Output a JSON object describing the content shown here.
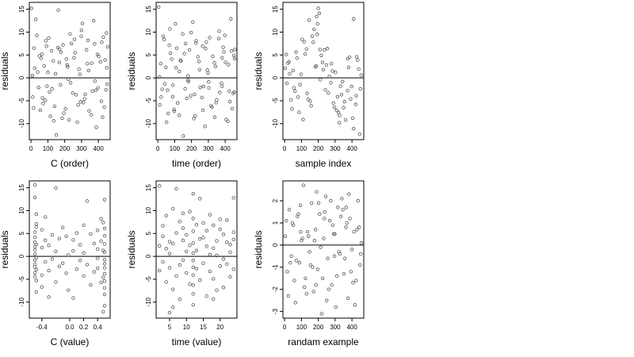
{
  "figure": {
    "ylabel": "residuals",
    "point_color": "#555555",
    "axis_color": "#000000"
  },
  "chart_data": [
    {
      "type": "scatter",
      "id": "c-order",
      "xlabel": "C (order)",
      "ylabel": "residuals",
      "xlim": [
        -10,
        470
      ],
      "ylim": [
        -13.5,
        16.5
      ],
      "xticks": [
        0,
        100,
        200,
        300,
        400
      ],
      "xtick_labels": [
        "0",
        "100",
        "200",
        "300",
        "400"
      ],
      "yticks": [
        -10,
        -5,
        0,
        5,
        10,
        15
      ],
      "ytick_labels": [
        "-10",
        "-5",
        "0",
        "5",
        "10",
        "15"
      ],
      "hline": 0,
      "x": [
        3,
        18,
        28,
        45,
        60,
        72,
        88,
        100,
        115,
        132,
        150,
        162,
        175,
        190,
        205,
        218,
        232,
        248,
        262,
        275,
        290,
        305,
        318,
        330,
        345,
        360,
        372,
        388,
        402,
        418,
        430,
        445,
        455,
        10,
        35,
        55,
        78,
        95,
        122,
        140,
        168,
        185,
        210,
        240,
        268,
        285,
        312,
        338,
        365,
        395,
        425,
        450,
        8,
        50,
        110,
        160,
        225,
        300,
        380,
        440,
        15,
        40,
        65,
        85,
        105,
        125,
        145,
        170,
        195,
        215,
        235,
        255,
        280,
        298,
        322,
        342,
        358,
        378,
        398,
        412,
        435,
        448,
        22,
        68,
        92,
        135,
        178,
        222,
        258,
        295,
        335,
        385,
        420,
        452
      ],
      "y": [
        15.2,
        6.5,
        12.8,
        -2.1,
        4.3,
        -5.6,
        8.1,
        1.2,
        -8.4,
        3.7,
        -12.5,
        14.8,
        -1.5,
        7.2,
        -6.8,
        2.4,
        9.6,
        -3.3,
        5.5,
        -9.7,
        0.8,
        11.9,
        -4.6,
        6.1,
        -7.2,
        3.2,
        12.5,
        -10.8,
        4.7,
        -5.1,
        8.9,
        -2.6,
        6.8,
        -4.2,
        9.3,
        -7.1,
        2.6,
        -1.8,
        5.9,
        -6.2,
        3.4,
        -8.8,
        4.1,
        7.5,
        -3.7,
        1.9,
        -5.4,
        8.2,
        -2.9,
        5.1,
        -8.6,
        2.2,
        0.5,
        4.8,
        -3.1,
        6.6,
        -9.2,
        10.4,
        -0.7,
        3.9,
        -6.6,
        1.3,
        5.2,
        -4.9,
        8.7,
        -2.4,
        0.9,
        6.3,
        -7.7,
        2.8,
        -1.1,
        4.4,
        -5.9,
        9.1,
        -3.6,
        1.6,
        -8.1,
        7.4,
        -2.2,
        3.5,
        -6.4,
        9.8,
        2.1,
        -4.4,
        6.9,
        -9.4,
        5.6,
        -0.3,
        8.4,
        -5.2,
        3.1,
        -2.7,
        7.8,
        -1.4
      ]
    },
    {
      "type": "scatter",
      "id": "time-order",
      "xlabel": "time (order)",
      "ylabel": "residuals",
      "xlim": [
        -10,
        470
      ],
      "ylim": [
        -13.5,
        16.5
      ],
      "xticks": [
        0,
        100,
        200,
        300,
        400
      ],
      "xtick_labels": [
        "0",
        "100",
        "200",
        "300",
        "400"
      ],
      "yticks": [
        -10,
        -5,
        0,
        5,
        10,
        15
      ],
      "ytick_labels": [
        "-10",
        "-5",
        "0",
        "5",
        "10",
        "15"
      ],
      "hline": 0,
      "x": [
        5,
        20,
        32,
        48,
        62,
        75,
        90,
        105,
        118,
        135,
        152,
        165,
        180,
        195,
        208,
        222,
        238,
        252,
        266,
        280,
        294,
        308,
        322,
        336,
        350,
        364,
        378,
        392,
        406,
        420,
        434,
        448,
        458,
        12,
        38,
        58,
        82,
        98,
        128,
        148,
        172,
        188,
        214,
        244,
        272,
        288,
        316,
        342,
        368,
        398,
        428,
        452,
        10,
        52,
        112,
        162,
        228,
        302,
        382,
        442,
        18,
        42,
        68,
        88,
        108,
        128,
        158,
        178,
        198,
        218,
        248,
        268,
        284,
        304,
        326,
        346,
        362,
        382,
        402,
        416,
        438,
        454,
        26,
        72,
        96,
        138,
        182,
        226,
        262,
        298,
        338,
        388,
        424,
        456
      ],
      "y": [
        15.5,
        -4.2,
        9.1,
        2.3,
        -7.8,
        5.4,
        -1.6,
        11.8,
        -5.5,
        3.8,
        -12.7,
        7.5,
        0.4,
        -3.9,
        12.2,
        -8.3,
        4.6,
        -2.1,
        6.9,
        -10.6,
        1.7,
        8.8,
        -6.4,
        3.3,
        -4.8,
        10.2,
        -1.2,
        5.7,
        -9.1,
        2.9,
        12.9,
        -3.4,
        6.2,
        -5.9,
        8.4,
        -2.7,
        4.1,
        -7.3,
        1.4,
        9.6,
        -4.5,
        6.1,
        -8.9,
        3.6,
        -1.9,
        7.8,
        -6.1,
        2.5,
        -3.2,
        9.3,
        -5.2,
        4.9,
        0.2,
        -9.7,
        6.5,
        -2.4,
        8.1,
        -0.9,
        4.4,
        -6.7,
        3.1,
        -1.3,
        7.1,
        -4.1,
        2.2,
        -8.2,
        5.3,
        -0.5,
        9.9,
        -3.6,
        1.8,
        -7.1,
        6.4,
        -2.2,
        4.7,
        -5.4,
        8.6,
        -1.8,
        3.4,
        -9.5,
        5.9,
        -3.1,
        -2.5,
        10.7,
        -6.9,
        3.7,
        -0.8,
        7.6,
        -4.3,
        1.1,
        -8.6,
        6.7,
        -2.9,
        4.2
      ]
    },
    {
      "type": "scatter",
      "id": "sample-index",
      "xlabel": "sample index",
      "ylabel": "residuals",
      "xlim": [
        -10,
        470
      ],
      "ylim": [
        -13.5,
        16.5
      ],
      "xticks": [
        0,
        100,
        200,
        300,
        400
      ],
      "xtick_labels": [
        "0",
        "100",
        "200",
        "300",
        "400"
      ],
      "yticks": [
        -10,
        -5,
        0,
        5,
        10,
        15
      ],
      "ytick_labels": [
        "-10",
        "-5",
        "0",
        "5",
        "10",
        "15"
      ],
      "hline": 0,
      "x": [
        4,
        14,
        26,
        38,
        50,
        62,
        74,
        86,
        98,
        110,
        122,
        134,
        146,
        158,
        170,
        182,
        194,
        200,
        206,
        218,
        230,
        242,
        254,
        266,
        278,
        290,
        302,
        314,
        326,
        338,
        350,
        362,
        374,
        386,
        398,
        410,
        422,
        434,
        446,
        455,
        20,
        44,
        68,
        92,
        116,
        140,
        164,
        188,
        212,
        236,
        260,
        284,
        308,
        332,
        356,
        380,
        404,
        428,
        450,
        30,
        80,
        130,
        175,
        225,
        275,
        325,
        375,
        425,
        56,
        104,
        152,
        196,
        248,
        296,
        344,
        392,
        440,
        10,
        190,
        210,
        320,
        410
      ],
      "y": [
        2.1,
        -1.2,
        3.5,
        -4.8,
        1.6,
        -2.9,
        4.3,
        -7.5,
        0.8,
        -9.1,
        5.2,
        -3.4,
        12.6,
        -6.1,
        7.8,
        2.4,
        9.5,
        15.2,
        14.1,
        4.9,
        1.8,
        -2.6,
        6.4,
        0.3,
        3.1,
        -5.5,
        1.2,
        -4.1,
        -8.2,
        -3.7,
        -6.5,
        -9.2,
        -2.8,
        4.5,
        -1.9,
        12.9,
        -5.8,
        3.9,
        -12.3,
        0.6,
        3.2,
        -6.8,
        5.6,
        -1.5,
        7.9,
        -4.7,
        9.1,
        2.6,
        -0.4,
        6.1,
        -3.3,
        1.5,
        -7.1,
        -1.8,
        -5.2,
        2.3,
        -8.8,
        4.6,
        -2.4,
        0.9,
        -4.2,
        6.3,
        10.6,
        3.4,
        -1.1,
        -9.8,
        4.2,
        -3.9,
        -2.2,
        8.4,
        -5.1,
        11.8,
        2.8,
        -6.4,
        -0.8,
        -4.6,
        1.9,
        5.1,
        13.4,
        6.2,
        -7.6,
        -11.1
      ]
    },
    {
      "type": "scatter",
      "id": "c-value",
      "xlabel": "C (value)",
      "ylabel": "residuals",
      "xlim": [
        -0.58,
        0.58
      ],
      "ylim": [
        -13.5,
        16.5
      ],
      "xticks": [
        -0.4,
        0.0,
        0.2,
        0.4
      ],
      "xtick_labels": [
        "-0.4",
        "0.0",
        "0.2",
        "0.4"
      ],
      "yticks": [
        -10,
        -5,
        0,
        5,
        10,
        15
      ],
      "ytick_labels": [
        "-10",
        "-5",
        "0",
        "5",
        "10",
        "15"
      ],
      "hline": 0,
      "x": [
        -0.5,
        -0.5,
        -0.5,
        -0.5,
        -0.5,
        -0.5,
        -0.5,
        -0.5,
        -0.5,
        -0.5,
        -0.5,
        -0.5,
        -0.5,
        -0.48,
        -0.48,
        -0.48,
        -0.48,
        -0.48,
        -0.48,
        -0.48,
        -0.48,
        -0.4,
        -0.4,
        -0.4,
        -0.4,
        -0.35,
        -0.35,
        -0.35,
        -0.3,
        -0.3,
        -0.3,
        -0.25,
        -0.25,
        -0.2,
        -0.2,
        -0.2,
        -0.15,
        -0.15,
        -0.1,
        -0.1,
        -0.05,
        -0.05,
        -0.02,
        -0.02,
        0.05,
        0.05,
        0.05,
        0.1,
        0.1,
        0.15,
        0.15,
        0.2,
        0.2,
        0.2,
        0.25,
        0.25,
        0.3,
        0.3,
        0.35,
        0.35,
        0.4,
        0.4,
        0.4,
        0.4,
        0.45,
        0.45,
        0.45,
        0.5,
        0.5,
        0.5,
        0.5,
        0.5,
        0.5,
        0.5,
        0.5,
        0.5,
        0.5,
        0.5,
        0.5,
        0.5,
        0.48,
        0.48,
        0.48,
        0.48
      ],
      "y": [
        15.6,
        12.9,
        4.2,
        2.1,
        0.5,
        -0.8,
        -2.3,
        -3.6,
        3.1,
        1.4,
        -1.7,
        5.3,
        -4.4,
        9.2,
        6.4,
        -5.3,
        -7.8,
        2.6,
        -0.3,
        7.1,
        -2.9,
        5.8,
        -4.1,
        1.9,
        -6.7,
        3.5,
        -1.2,
        8.6,
        -3.1,
        2.4,
        -8.9,
        4.7,
        -0.6,
        14.9,
        1.1,
        -5.6,
        3.9,
        -2.2,
        6.3,
        -1.5,
        4.4,
        -3.7,
        0.3,
        -7.4,
        3.6,
        -9.1,
        1.2,
        5.1,
        -2.8,
        2.5,
        -0.9,
        6.8,
        -4.3,
        0.7,
        12.1,
        -1.8,
        4.9,
        -6.2,
        2.8,
        -3.4,
        5.7,
        1.6,
        -0.4,
        -2.6,
        8.2,
        -5.7,
        3.3,
        12.4,
        6.1,
        4.5,
        2.7,
        0.9,
        -0.7,
        -1.6,
        -2.5,
        -3.8,
        -5.4,
        -6.9,
        -8.3,
        -10.8,
        7.4,
        1.3,
        -4.6,
        -12.1
      ]
    },
    {
      "type": "scatter",
      "id": "time-value",
      "xlabel": "time (value)",
      "ylabel": "residuals",
      "xlim": [
        1,
        25
      ],
      "ylim": [
        -13.5,
        16.5
      ],
      "xticks": [
        5,
        10,
        15,
        20
      ],
      "xtick_labels": [
        "5",
        "10",
        "15",
        "20"
      ],
      "yticks": [
        -10,
        -5,
        0,
        5,
        10,
        15
      ],
      "ytick_labels": [
        "-10",
        "-5",
        "0",
        "5",
        "10",
        "15"
      ],
      "hline": 0,
      "x": [
        2,
        2,
        2,
        3,
        3,
        3,
        4,
        4,
        4,
        5,
        5,
        5,
        5,
        6,
        6,
        6,
        7,
        7,
        7,
        8,
        8,
        8,
        9,
        9,
        9,
        10,
        10,
        10,
        11,
        11,
        11,
        12,
        12,
        12,
        12,
        12,
        12,
        12,
        12,
        12,
        12,
        13,
        13,
        13,
        14,
        14,
        14,
        15,
        15,
        15,
        16,
        16,
        16,
        17,
        17,
        17,
        18,
        18,
        18,
        19,
        19,
        19,
        20,
        20,
        20,
        21,
        21,
        21,
        22,
        22,
        22,
        23,
        23,
        23,
        24,
        24,
        24,
        6,
        9,
        12,
        18,
        24
      ],
      "y": [
        15.4,
        2.3,
        -3.1,
        6.7,
        -1.2,
        4.4,
        -5.6,
        1.7,
        8.9,
        -12.3,
        3.2,
        -2.5,
        0.6,
        10.4,
        -7.2,
        2.8,
        14.8,
        -4.3,
        5.1,
        -1.9,
        7.6,
        -9.4,
        3.5,
        -0.8,
        6.2,
        4.7,
        -3.6,
        1.1,
        9.8,
        -6.1,
        2.4,
        8.3,
        5.5,
        2.9,
        0.7,
        -0.9,
        -2.4,
        -4.1,
        -6.3,
        -8.2,
        -10.6,
        6.9,
        -2.7,
        1.3,
        12.6,
        -5.2,
        3.8,
        4.1,
        -1.5,
        7.3,
        -8.7,
        2.2,
        5.6,
        -3.3,
        0.4,
        9.1,
        6.8,
        -4.9,
        1.8,
        3.4,
        -7.4,
        0.2,
        5.9,
        -2.1,
        8.1,
        -0.6,
        4.8,
        -6.8,
        3.1,
        -1.7,
        7.9,
        2.6,
        -4.5,
        0.9,
        12.8,
        -2.8,
        5.3,
        -11.1,
        9.4,
        13.7,
        -9.3,
        3.7
      ]
    },
    {
      "type": "scatter",
      "id": "randam-example",
      "xlabel": "randam example",
      "ylabel": "residuals",
      "xlim": [
        -10,
        470
      ],
      "ylim": [
        -3.3,
        2.9
      ],
      "xticks": [
        0,
        100,
        200,
        300,
        400
      ],
      "xtick_labels": [
        "0",
        "100",
        "200",
        "300",
        "400"
      ],
      "yticks": [
        -3,
        -2,
        -1,
        0,
        1,
        2
      ],
      "ytick_labels": [
        "-3",
        "-2",
        "-1",
        "0",
        "1",
        "2"
      ],
      "hline": 0,
      "x": [
        4,
        16,
        28,
        40,
        52,
        64,
        76,
        88,
        100,
        112,
        124,
        136,
        148,
        160,
        172,
        184,
        196,
        208,
        220,
        232,
        244,
        256,
        268,
        280,
        292,
        304,
        316,
        328,
        340,
        352,
        364,
        376,
        388,
        400,
        412,
        424,
        436,
        448,
        456,
        22,
        46,
        70,
        94,
        118,
        142,
        166,
        190,
        214,
        238,
        262,
        286,
        310,
        334,
        358,
        382,
        406,
        430,
        452,
        10,
        58,
        106,
        154,
        202,
        250,
        298,
        346,
        394,
        442,
        34,
        82,
        130,
        178,
        226,
        274,
        322,
        370,
        418,
        96,
        186,
        236,
        296,
        366
      ],
      "y": [
        0.4,
        -1.2,
        1.6,
        -0.5,
        0.9,
        -2.6,
        1.3,
        -0.8,
        0.2,
        2.7,
        -1.5,
        0.6,
        -0.3,
        1.9,
        -2.1,
        0.7,
        -1.1,
        1.4,
        -3.1,
        0.3,
        2.2,
        -0.6,
        1.1,
        -1.8,
        0.5,
        -2.8,
        1.7,
        -0.4,
        2.1,
        -1.3,
        0.8,
        -2.4,
        1.2,
        -0.2,
        0.6,
        -1.6,
        2.0,
        -0.9,
        0.1,
        -2.3,
        1.0,
        -0.7,
        1.8,
        -1.9,
        0.4,
        -1.0,
        2.4,
        -0.1,
        1.5,
        -2.0,
        0.9,
        -1.4,
        1.3,
        -0.6,
        2.3,
        -1.7,
        0.7,
        -0.4,
        1.1,
        -1.6,
        0.3,
        -0.9,
        1.9,
        -2.5,
        0.5,
        1.6,
        -1.2,
        0.8,
        -0.8,
        1.4,
        -2.2,
        0.2,
        -1.5,
        2.0,
        -0.3,
        1.0,
        -2.7,
        0.6,
        -1.8,
        1.2,
        -0.5,
        1.7
      ]
    }
  ]
}
